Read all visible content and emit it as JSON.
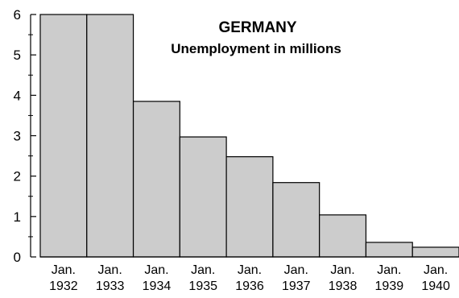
{
  "chart_data": {
    "type": "bar",
    "title": "GERMANY",
    "subtitle": "Unemployment in millions",
    "xlabel": "",
    "ylabel": "",
    "categories": [
      [
        "Jan.",
        "1932"
      ],
      [
        "Jan.",
        "1933"
      ],
      [
        "Jan.",
        "1934"
      ],
      [
        "Jan.",
        "1935"
      ],
      [
        "Jan.",
        "1936"
      ],
      [
        "Jan.",
        "1937"
      ],
      [
        "Jan.",
        "1938"
      ],
      [
        "Jan.",
        "1939"
      ],
      [
        "Jan.",
        "1940"
      ]
    ],
    "values": [
      6.0,
      6.0,
      3.85,
      2.97,
      2.48,
      1.84,
      1.04,
      0.36,
      0.24
    ],
    "ylim": [
      0,
      6
    ],
    "yticks": [
      0,
      1,
      2,
      3,
      4,
      5,
      6
    ],
    "grid": false,
    "bar_color": "#cccccc",
    "bar_edge_color": "#000000"
  }
}
